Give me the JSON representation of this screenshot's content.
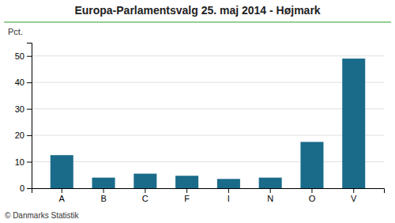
{
  "chart_data": {
    "type": "bar",
    "title": "Europa-Parlamentsvalg 25. maj 2014 - Højmark",
    "categories": [
      "A",
      "B",
      "C",
      "F",
      "I",
      "N",
      "O",
      "V"
    ],
    "values": [
      12.5,
      4.0,
      5.5,
      4.7,
      3.5,
      4.0,
      17.5,
      49.0
    ],
    "color": "#1a6b8a",
    "ylabel": "Pct.",
    "ylim": [
      0,
      55
    ],
    "yticks": [
      0,
      10,
      20,
      30,
      40,
      50
    ],
    "grid": true,
    "annotations": [
      "© Danmarks Statistik"
    ]
  }
}
